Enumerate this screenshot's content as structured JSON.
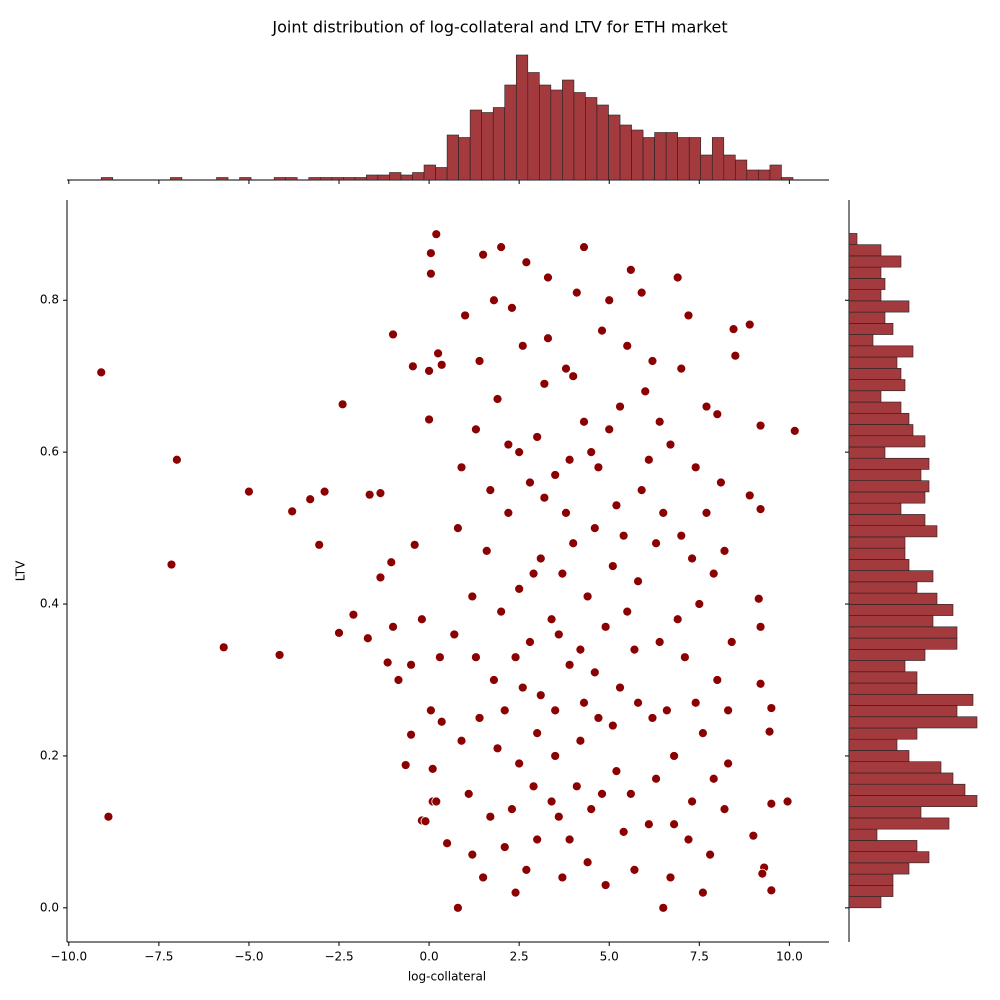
{
  "chart_data": [
    {
      "type": "scatter",
      "title": "Joint distribution of log-collateral and LTV for ETH market",
      "x_label": "log-collateral",
      "y_label": "LTV",
      "color": "#8b0000",
      "xlim": [
        -10.05,
        11.1
      ],
      "ylim": [
        -0.045,
        0.932
      ],
      "xticks": [
        {
          "value": -10,
          "label": "−10.0"
        },
        {
          "value": -7.5,
          "label": "−7.5"
        },
        {
          "value": -5,
          "label": "−5.0"
        },
        {
          "value": -2.5,
          "label": "−2.5"
        },
        {
          "value": 0,
          "label": "0.0"
        },
        {
          "value": 2.5,
          "label": "2.5"
        },
        {
          "value": 5,
          "label": "5.0"
        },
        {
          "value": 7.5,
          "label": "7.5"
        },
        {
          "value": 10,
          "label": "10.0"
        }
      ],
      "yticks": [
        {
          "value": 0,
          "label": "0.0"
        },
        0.2,
        0.4,
        0.6,
        0.8
      ],
      "x": [
        -9.1,
        -8.9,
        -7.0,
        -7.15,
        -5.7,
        -5.0,
        -4.15,
        -3.8,
        -3.3,
        -3.05,
        -2.9,
        -2.4,
        -2.5,
        -2.1,
        -1.7,
        -1.65,
        -1.35,
        -1.35,
        -1.05,
        -1.0,
        -1.0,
        -1.15,
        -0.85,
        -0.65,
        -0.5,
        -0.5,
        -0.45,
        -0.4,
        -0.2,
        -0.2,
        0.05,
        0.05,
        0.2,
        0.0,
        0.0,
        0.05,
        0.1,
        0.1,
        -0.1,
        0.25,
        0.3,
        0.35,
        0.5,
        0.35,
        0.2,
        10.15,
        9.95,
        9.5,
        9.5,
        9.5,
        9.45,
        9.3,
        9.25,
        9.2,
        9.2,
        9.2,
        9.15,
        9.2,
        9.0,
        8.9,
        8.9,
        8.5,
        8.45,
        0.8,
        1.0,
        0.9,
        1.2,
        1.5,
        1.4,
        1.7,
        1.9,
        2.0,
        2.2,
        2.4,
        2.5,
        2.6,
        2.7,
        2.9,
        3.0,
        3.1,
        3.3,
        3.4,
        3.5,
        3.6,
        3.8,
        3.9,
        4.0,
        4.2,
        4.3,
        4.5,
        4.6,
        4.8,
        4.9,
        5.1,
        5.2,
        5.3,
        5.5,
        5.6,
        5.8,
        5.9,
        6.1,
        6.2,
        6.4,
        6.5,
        6.7,
        6.8,
        7.0,
        7.2,
        7.3,
        7.5,
        7.7,
        7.8,
        8.0,
        8.1,
        8.3,
        0.7,
        1.1,
        1.3,
        1.6,
        1.8,
        2.1,
        2.3,
        2.5,
        2.8,
        3.0,
        3.2,
        3.4,
        3.7,
        3.8,
        4.1,
        4.3,
        4.4,
        4.7,
        5.0,
        5.2,
        5.4,
        5.7,
        6.0,
        6.3,
        6.6,
        6.9,
        7.1,
        7.4,
        7.6,
        7.9,
        8.2,
        8.4,
        0.8,
        1.2,
        1.4,
        1.7,
        1.9,
        2.2,
        2.4,
        2.6,
        2.7,
        2.9,
        3.1,
        3.3,
        3.5,
        3.6,
        3.9,
        4.1,
        4.2,
        4.4,
        4.6,
        4.8,
        5.0,
        5.3,
        5.5,
        5.7,
        5.8,
        6.1,
        6.3,
        6.5,
        6.7,
        6.9,
        7.2,
        7.4,
        7.7,
        7.9,
        8.2,
        0.9,
        1.3,
        1.5,
        1.8,
        2.0,
        2.1,
        2.3,
        2.5,
        2.8,
        3.0,
        3.2,
        3.5,
        3.7,
        3.9,
        4.0,
        4.3,
        4.5,
        4.7,
        4.9,
        5.1,
        5.4,
        5.6,
        5.9,
        6.2,
        6.4,
        6.8,
        7.0,
        7.3,
        7.6,
        8.0,
        8.3
      ],
      "y": [
        0.705,
        0.12,
        0.59,
        0.452,
        0.343,
        0.548,
        0.333,
        0.522,
        0.538,
        0.478,
        0.548,
        0.663,
        0.362,
        0.386,
        0.355,
        0.544,
        0.546,
        0.435,
        0.455,
        0.37,
        0.755,
        0.323,
        0.3,
        0.188,
        0.32,
        0.228,
        0.713,
        0.478,
        0.38,
        0.115,
        0.862,
        0.835,
        0.887,
        0.643,
        0.707,
        0.26,
        0.183,
        0.14,
        0.114,
        0.73,
        0.33,
        0.715,
        0.085,
        0.245,
        0.14,
        0.628,
        0.14,
        0.023,
        0.137,
        0.263,
        0.232,
        0.053,
        0.045,
        0.635,
        0.37,
        0.525,
        0.407,
        0.295,
        0.095,
        0.768,
        0.543,
        0.727,
        0.762,
        0.0,
        0.78,
        0.58,
        0.41,
        0.86,
        0.25,
        0.12,
        0.67,
        0.87,
        0.52,
        0.33,
        0.19,
        0.74,
        0.05,
        0.44,
        0.62,
        0.28,
        0.83,
        0.14,
        0.57,
        0.36,
        0.71,
        0.09,
        0.48,
        0.22,
        0.87,
        0.6,
        0.31,
        0.76,
        0.03,
        0.45,
        0.18,
        0.66,
        0.39,
        0.84,
        0.27,
        0.55,
        0.11,
        0.72,
        0.35,
        0.0,
        0.61,
        0.2,
        0.49,
        0.78,
        0.14,
        0.4,
        0.66,
        0.07,
        0.3,
        0.56,
        0.19,
        0.36,
        0.15,
        0.63,
        0.47,
        0.3,
        0.08,
        0.79,
        0.42,
        0.56,
        0.23,
        0.69,
        0.38,
        0.04,
        0.52,
        0.16,
        0.64,
        0.41,
        0.25,
        0.8,
        0.53,
        0.1,
        0.34,
        0.68,
        0.48,
        0.26,
        0.83,
        0.33,
        0.58,
        0.23,
        0.44,
        0.13,
        0.35,
        0.5,
        0.07,
        0.72,
        0.55,
        0.21,
        0.61,
        0.02,
        0.29,
        0.85,
        0.16,
        0.46,
        0.75,
        0.26,
        0.12,
        0.59,
        0.81,
        0.34,
        0.06,
        0.5,
        0.15,
        0.63,
        0.29,
        0.74,
        0.05,
        0.43,
        0.59,
        0.17,
        0.52,
        0.04,
        0.38,
        0.09,
        0.27,
        0.52,
        0.17,
        0.47,
        0.22,
        0.33,
        0.04,
        0.8,
        0.39,
        0.26,
        0.13,
        0.6,
        0.35,
        0.09,
        0.54,
        0.2,
        0.44,
        0.32,
        0.7,
        0.27,
        0.13,
        0.58,
        0.37,
        0.24,
        0.49,
        0.15,
        0.81,
        0.25,
        0.64,
        0.11,
        0.71,
        0.46,
        0.02,
        0.65,
        0.26
      ]
    },
    {
      "type": "histogram",
      "orientation": "vertical",
      "color": "#a33a3e",
      "ylim": [
        0,
        54
      ],
      "bins": [
        -9.1,
        -8.78,
        -8.46,
        -8.14,
        -7.82,
        -7.5,
        -7.18,
        -6.86,
        -6.54,
        -6.22,
        -5.9,
        -5.58,
        -5.26,
        -4.94,
        -4.62,
        -4.3,
        -3.98,
        -3.66,
        -3.34,
        -3.02,
        -2.7,
        -2.38,
        -2.06,
        -1.74,
        -1.42,
        -1.1,
        -0.78,
        -0.46,
        -0.14,
        0.18,
        0.5,
        0.82,
        1.14,
        1.46,
        1.78,
        2.1,
        2.42,
        2.74,
        3.06,
        3.38,
        3.7,
        4.02,
        4.34,
        4.66,
        4.98,
        5.3,
        5.62,
        5.94,
        6.26,
        6.58,
        6.9,
        7.22,
        7.54,
        7.86,
        8.18,
        8.5,
        8.82,
        9.14,
        9.46,
        9.78,
        10.1
      ],
      "counts": [
        1,
        0,
        0,
        0,
        0,
        0,
        1,
        0,
        0,
        0,
        1,
        0,
        1,
        0,
        0,
        1,
        1,
        0,
        1,
        1,
        1,
        1,
        1,
        2,
        2,
        3,
        2,
        3,
        6,
        5,
        18,
        17,
        28,
        27,
        29,
        38,
        50,
        43,
        38,
        36,
        40,
        35,
        33,
        30,
        26,
        22,
        20,
        17,
        19,
        19,
        17,
        17,
        10,
        17,
        10,
        8,
        4,
        4,
        6,
        1
      ]
    },
    {
      "type": "histogram",
      "orientation": "horizontal",
      "color": "#a33a3e",
      "xlim": [
        0,
        35
      ],
      "bins": [
        0,
        0.0148,
        0.0296,
        0.0444,
        0.0592,
        0.074,
        0.0888,
        0.1036,
        0.1184,
        0.1332,
        0.148,
        0.1628,
        0.1776,
        0.1924,
        0.2072,
        0.222,
        0.2368,
        0.2516,
        0.2664,
        0.2812,
        0.296,
        0.3108,
        0.3256,
        0.3404,
        0.3552,
        0.37,
        0.3848,
        0.3996,
        0.4144,
        0.4292,
        0.444,
        0.4588,
        0.4736,
        0.4884,
        0.5032,
        0.518,
        0.5328,
        0.5476,
        0.5624,
        0.5772,
        0.592,
        0.6068,
        0.6216,
        0.6364,
        0.6512,
        0.666,
        0.6808,
        0.6956,
        0.7104,
        0.7252,
        0.74,
        0.7548,
        0.7696,
        0.7844,
        0.7992,
        0.814,
        0.8288,
        0.8436,
        0.8584,
        0.8732,
        0.888
      ],
      "counts": [
        8,
        11,
        11,
        15,
        20,
        17,
        7,
        25,
        18,
        32,
        29,
        26,
        23,
        15,
        12,
        17,
        32,
        27,
        31,
        17,
        17,
        14,
        19,
        27,
        27,
        21,
        26,
        22,
        17,
        21,
        15,
        14,
        14,
        22,
        19,
        13,
        19,
        20,
        18,
        20,
        9,
        19,
        16,
        15,
        13,
        8,
        14,
        13,
        12,
        16,
        6,
        11,
        9,
        15,
        8,
        9,
        8,
        13,
        8,
        2
      ]
    }
  ]
}
